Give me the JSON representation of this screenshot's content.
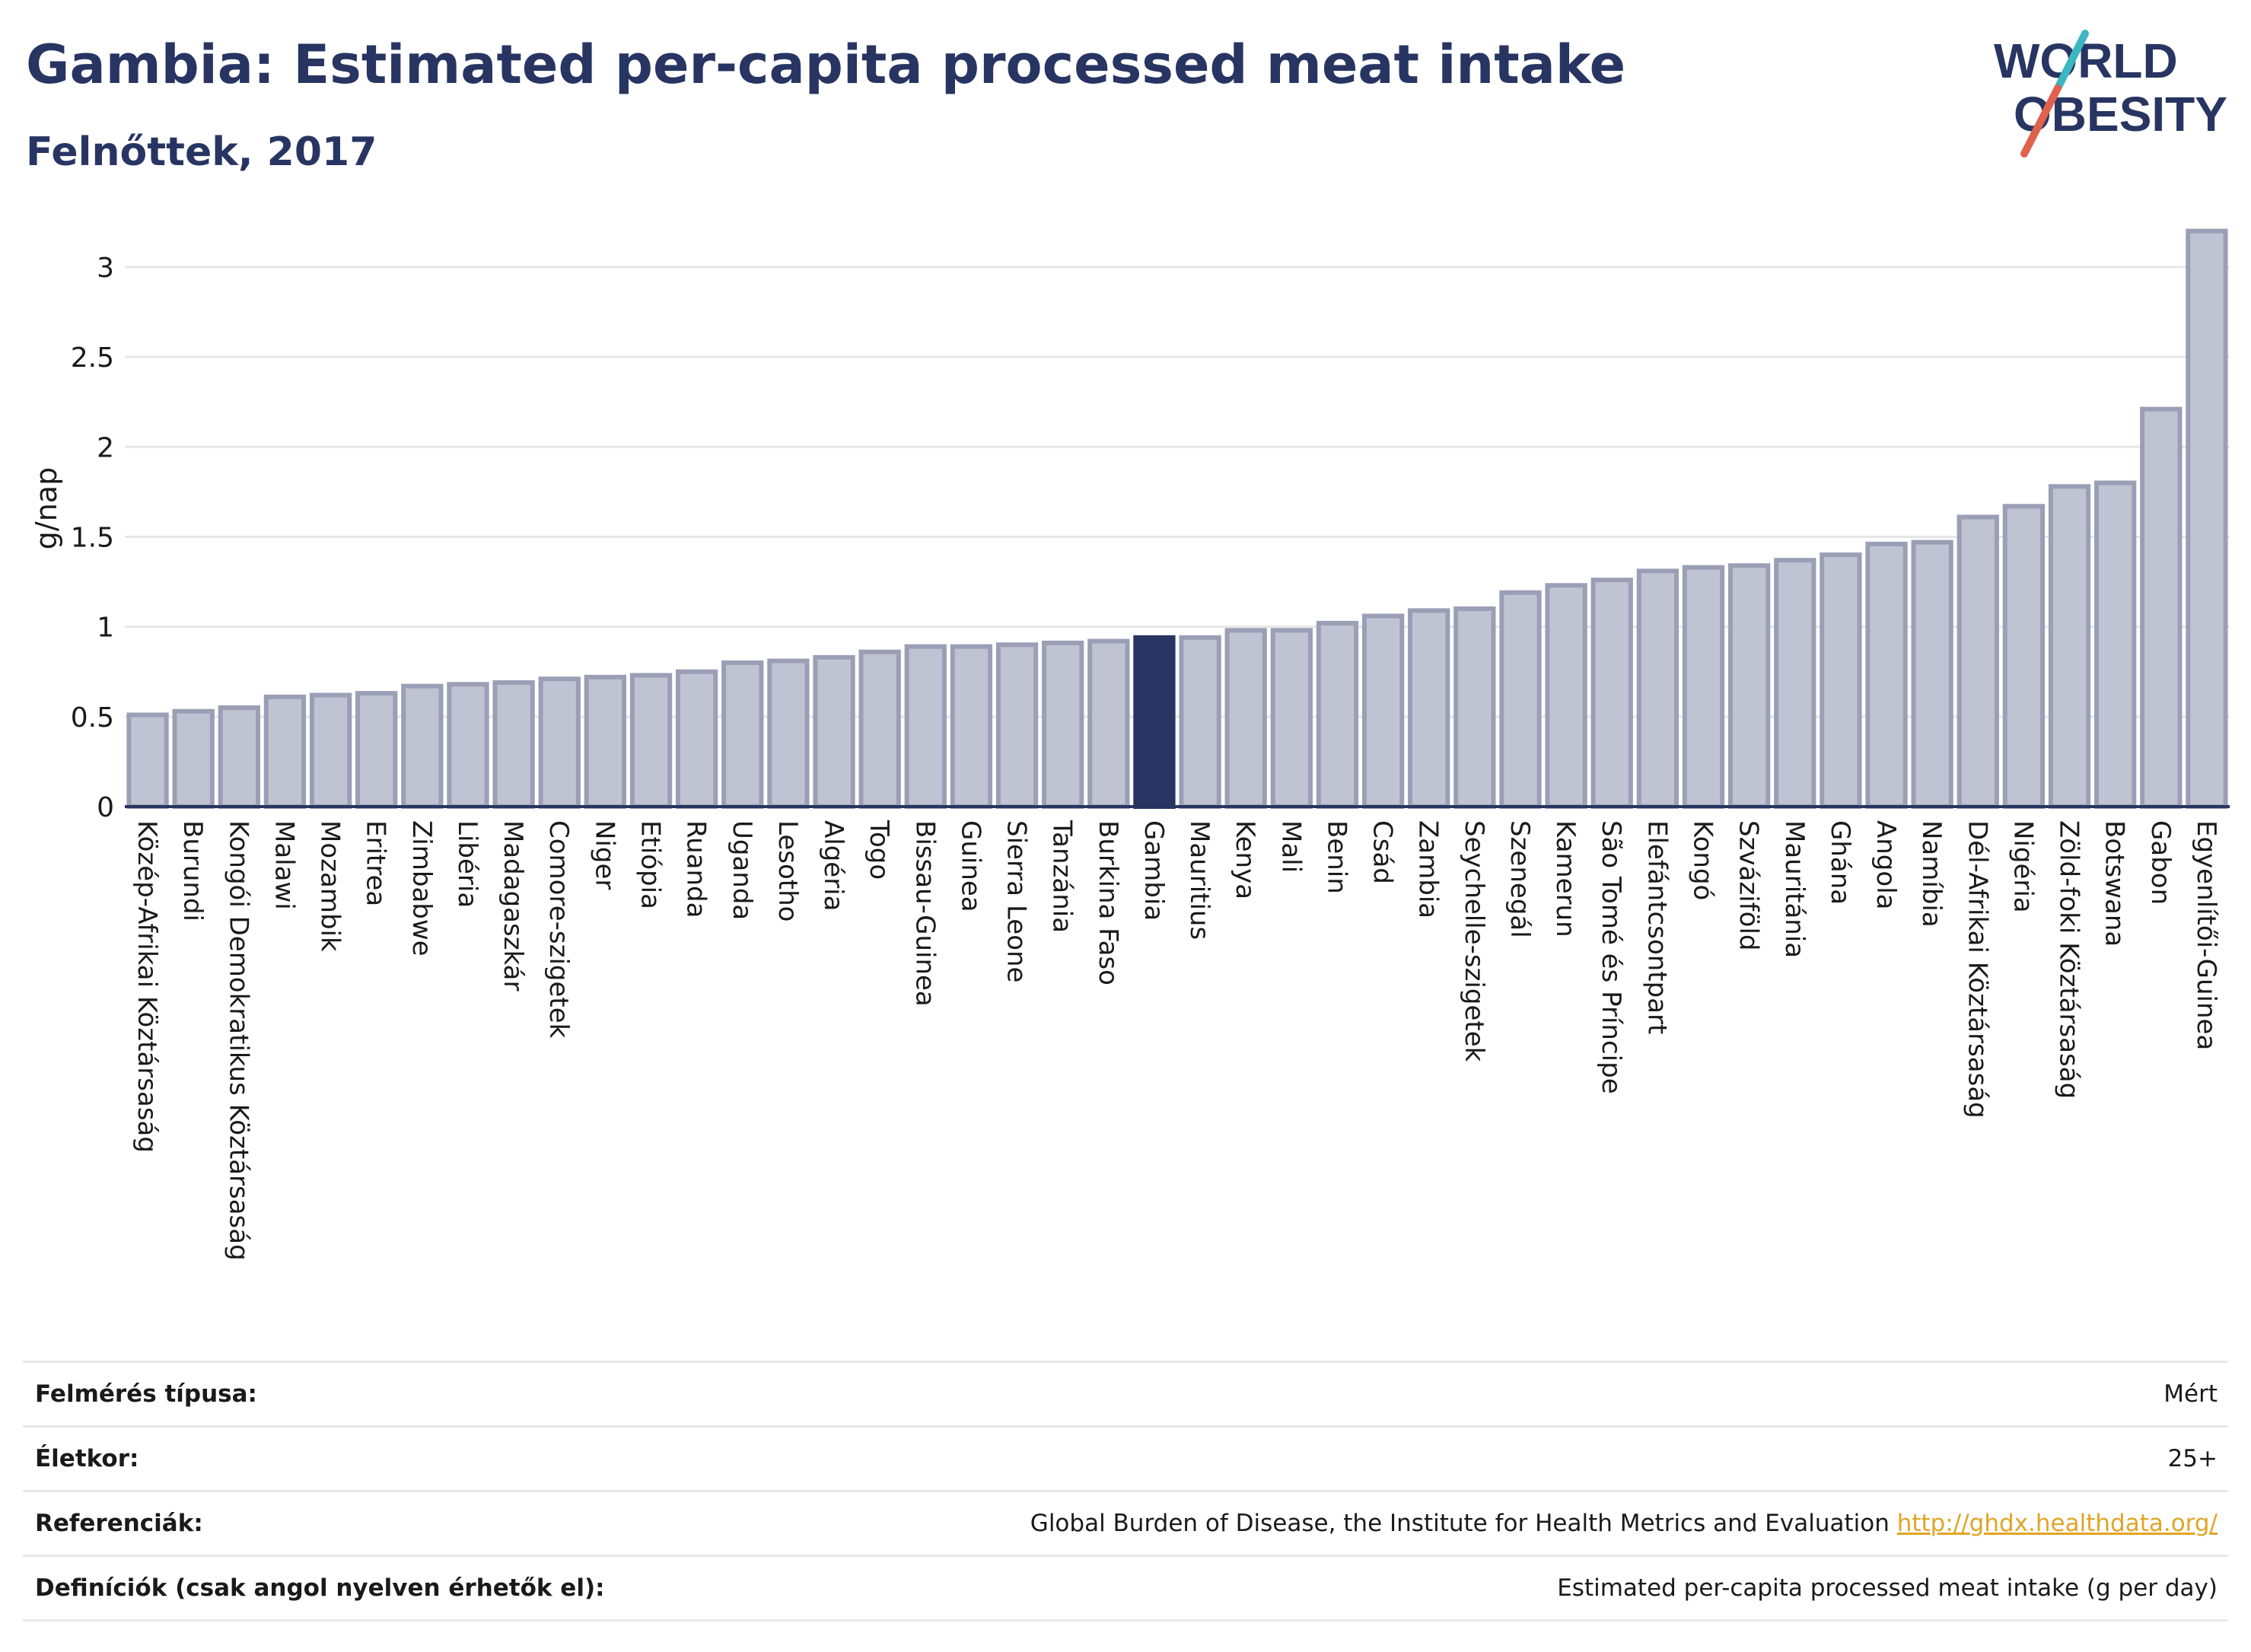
{
  "header": {
    "title": "Gambia: Estimated per-capita processed meat intake",
    "subtitle": "Felnőttek, 2017"
  },
  "logo": {
    "line1": "WORLD",
    "line2": "OBESITY",
    "accent_colors": [
      "#3cb6c0",
      "#e0614e"
    ]
  },
  "chart_data": {
    "type": "bar",
    "ylabel": "g/nap",
    "ylim": [
      0,
      3.3
    ],
    "yticks": [
      0,
      0.5,
      1,
      1.5,
      2,
      2.5,
      3
    ],
    "ytick_labels": [
      "0",
      "0.5",
      "1",
      "1.5",
      "2",
      "2.5",
      "3"
    ],
    "grid": true,
    "highlight": "Gambia",
    "colors": {
      "bar": "#c0c3d1",
      "bar_stroke": "#9a9fb6",
      "highlight": "#283562",
      "grid": "#e6e6e6",
      "axis": "#283562"
    },
    "categories": [
      "Közép-Afrikai Köztársaság",
      "Burundi",
      "Kongói Demokratikus Köztársaság",
      "Malawi",
      "Mozambik",
      "Eritrea",
      "Zimbabwe",
      "Libéria",
      "Madagaszkár",
      "Comore-szigetek",
      "Niger",
      "Etiópia",
      "Ruanda",
      "Uganda",
      "Lesotho",
      "Algéria",
      "Togo",
      "Bissau-Guinea",
      "Guinea",
      "Sierra Leone",
      "Tanzánia",
      "Burkina Faso",
      "Gambia",
      "Mauritius",
      "Kenya",
      "Mali",
      "Benin",
      "Csád",
      "Zambia",
      "Seychelle-szigetek",
      "Szenegál",
      "Kamerun",
      "São Tomé és Príncipe",
      "Elefántcsontpart",
      "Kongó",
      "Szváziföld",
      "Mauritánia",
      "Ghána",
      "Angola",
      "Namíbia",
      "Dél-Afrikai Köztársaság",
      "Nigéria",
      "Zöld-foki Köztársaság",
      "Botswana",
      "Gabon",
      "Egyenlítői-Guinea"
    ],
    "values": [
      0.51,
      0.53,
      0.55,
      0.61,
      0.62,
      0.63,
      0.67,
      0.68,
      0.69,
      0.71,
      0.72,
      0.73,
      0.75,
      0.8,
      0.81,
      0.83,
      0.86,
      0.89,
      0.89,
      0.9,
      0.91,
      0.92,
      0.94,
      0.94,
      0.98,
      0.98,
      1.02,
      1.06,
      1.09,
      1.1,
      1.19,
      1.23,
      1.26,
      1.31,
      1.33,
      1.34,
      1.37,
      1.4,
      1.46,
      1.47,
      1.61,
      1.67,
      1.78,
      1.8,
      2.21,
      3.2
    ]
  },
  "meta": [
    {
      "key": "Felmérés típusa:",
      "value": "Mért"
    },
    {
      "key": "Életkor:",
      "value": "25+"
    },
    {
      "key": "Referenciák:",
      "value": "Global Burden of Disease, the Institute for Health Metrics and Evaluation",
      "link": "http://ghdx.healthdata.org/"
    },
    {
      "key": "Definíciók (csak angol nyelven érhetők el):",
      "value": "Estimated per-capita processed meat intake (g per day)"
    }
  ]
}
